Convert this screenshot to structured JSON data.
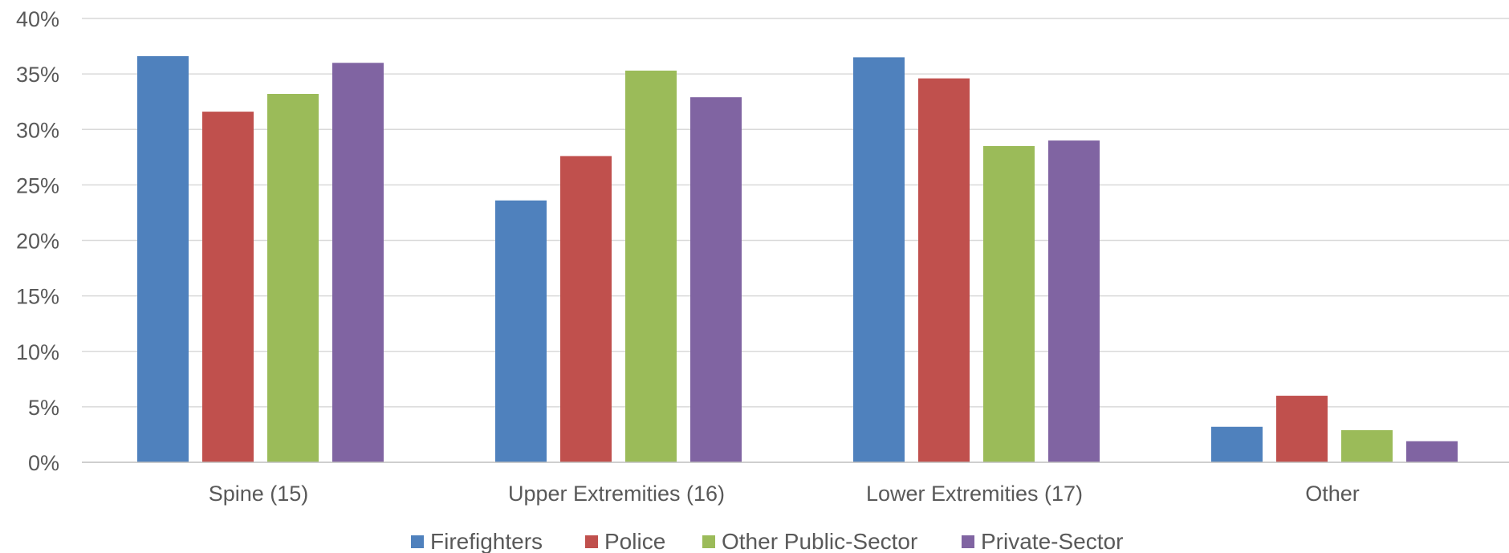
{
  "chart_data": {
    "type": "bar",
    "title": "",
    "xlabel": "",
    "ylabel": "",
    "categories": [
      "Spine (15)",
      "Upper Extremities (16)",
      "Lower Extremities (17)",
      "Other"
    ],
    "series": [
      {
        "name": "Firefighters",
        "color": "#4f81bd",
        "values": [
          36.6,
          23.6,
          36.5,
          3.2
        ]
      },
      {
        "name": "Police",
        "color": "#c0504d",
        "values": [
          31.6,
          27.6,
          34.6,
          6.0
        ]
      },
      {
        "name": "Other Public-Sector",
        "color": "#9bbb59",
        "values": [
          33.2,
          35.3,
          28.5,
          2.9
        ]
      },
      {
        "name": "Private-Sector",
        "color": "#8064a2",
        "values": [
          36.0,
          32.9,
          29.0,
          1.9
        ]
      }
    ],
    "ylim": [
      0,
      40
    ],
    "yticks": [
      0,
      5,
      10,
      15,
      20,
      25,
      30,
      35,
      40
    ],
    "ytick_labels": [
      "0%",
      "5%",
      "10%",
      "15%",
      "20%",
      "25%",
      "30%",
      "35%",
      "40%"
    ],
    "grid": true,
    "legend_position": "bottom"
  }
}
